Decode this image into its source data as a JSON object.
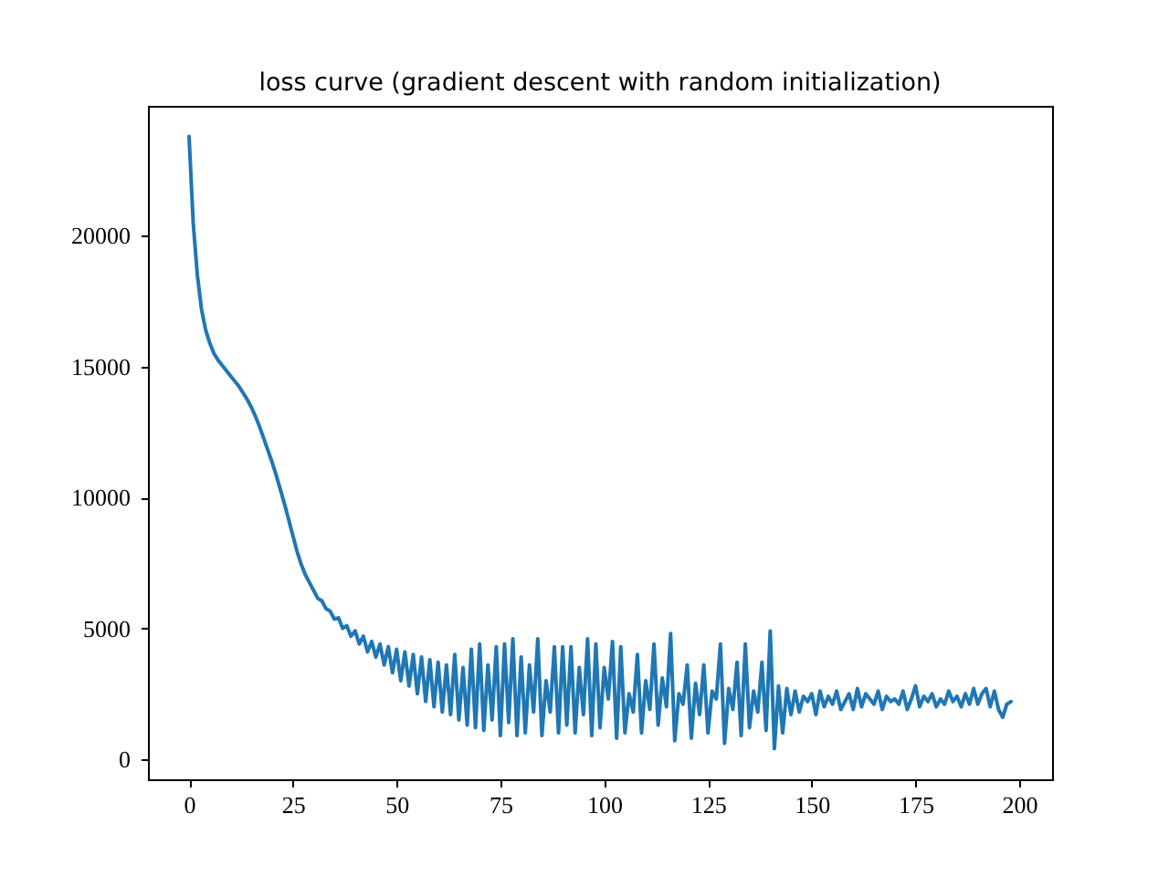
{
  "chart_data": {
    "type": "line",
    "title": "loss curve (gradient descent with random initialization)",
    "x": [
      0,
      1,
      2,
      3,
      4,
      5,
      6,
      7,
      8,
      9,
      10,
      11,
      12,
      13,
      14,
      15,
      16,
      17,
      18,
      19,
      20,
      21,
      22,
      23,
      24,
      25,
      26,
      27,
      28,
      29,
      30,
      31,
      32,
      33,
      34,
      35,
      36,
      37,
      38,
      39,
      40,
      41,
      42,
      43,
      44,
      45,
      46,
      47,
      48,
      49,
      50,
      51,
      52,
      53,
      54,
      55,
      56,
      57,
      58,
      59,
      60,
      61,
      62,
      63,
      64,
      65,
      66,
      67,
      68,
      69,
      70,
      71,
      72,
      73,
      74,
      75,
      76,
      77,
      78,
      79,
      80,
      81,
      82,
      83,
      84,
      85,
      86,
      87,
      88,
      89,
      90,
      91,
      92,
      93,
      94,
      95,
      96,
      97,
      98,
      99,
      100,
      101,
      102,
      103,
      104,
      105,
      106,
      107,
      108,
      109,
      110,
      111,
      112,
      113,
      114,
      115,
      116,
      117,
      118,
      119,
      120,
      121,
      122,
      123,
      124,
      125,
      126,
      127,
      128,
      129,
      130,
      131,
      132,
      133,
      134,
      135,
      136,
      137,
      138,
      139,
      140,
      141,
      142,
      143,
      144,
      145,
      146,
      147,
      148,
      149,
      150,
      151,
      152,
      153,
      154,
      155,
      156,
      157,
      158,
      159,
      160,
      161,
      162,
      163,
      164,
      165,
      166,
      167,
      168,
      169,
      170,
      171,
      172,
      173,
      174,
      175,
      176,
      177,
      178,
      179,
      180,
      181,
      182,
      183,
      184,
      185,
      186,
      187,
      188,
      189,
      190,
      191,
      192,
      193,
      194,
      195,
      196,
      197,
      198
    ],
    "series": [
      {
        "color": "#1f77b4",
        "values": [
          23800,
          20500,
          18500,
          17200,
          16400,
          15900,
          15500,
          15250,
          15050,
          14850,
          14650,
          14450,
          14250,
          14000,
          13750,
          13450,
          13100,
          12700,
          12250,
          11800,
          11350,
          10850,
          10300,
          9750,
          9150,
          8550,
          7950,
          7450,
          7050,
          6750,
          6450,
          6150,
          6050,
          5750,
          5650,
          5350,
          5400,
          5000,
          5100,
          4700,
          4900,
          4400,
          4700,
          4100,
          4500,
          3900,
          4400,
          3600,
          4300,
          3300,
          4200,
          3000,
          4100,
          2800,
          4000,
          2500,
          3900,
          2200,
          3800,
          2000,
          3700,
          1800,
          3600,
          1700,
          4000,
          1500,
          3500,
          1300,
          4200,
          1200,
          4400,
          1100,
          3600,
          1500,
          4300,
          900,
          4400,
          1400,
          4600,
          900,
          3900,
          1000,
          3600,
          1800,
          4600,
          900,
          3000,
          1800,
          4300,
          1000,
          4300,
          1300,
          4300,
          1000,
          3500,
          1700,
          4600,
          900,
          4400,
          1200,
          3500,
          2300,
          4500,
          800,
          4300,
          1000,
          2500,
          1800,
          4000,
          1000,
          3000,
          1900,
          4400,
          1300,
          3100,
          2000,
          4800,
          700,
          2500,
          2100,
          3600,
          800,
          2900,
          1700,
          3600,
          1000,
          2600,
          2300,
          4400,
          600,
          2700,
          1900,
          3700,
          900,
          4400,
          1200,
          2600,
          1800,
          3700,
          1100,
          4900,
          400,
          2800,
          1000,
          2700,
          1700,
          2600,
          1800,
          2400,
          2200,
          2500,
          1700,
          2600,
          2000,
          2400,
          2100,
          2600,
          1900,
          2200,
          2500,
          1900,
          2700,
          2000,
          2500,
          2300,
          2100,
          2600,
          1900,
          2400,
          2200,
          2300,
          2100,
          2600,
          1900,
          2300,
          2800,
          2000,
          2400,
          2200,
          2500,
          2000,
          2300,
          2100,
          2600,
          2200,
          2400,
          2000,
          2500,
          2100,
          2700,
          2100,
          2500,
          2700,
          2000,
          2600,
          1900,
          1600,
          2100,
          2200
        ]
      }
    ],
    "xlim": [
      -9.9,
      207.9
    ],
    "ylim": [
      -770,
      24970
    ],
    "xticks": [
      0,
      25,
      50,
      75,
      100,
      125,
      150,
      175,
      200
    ],
    "yticks": [
      0,
      5000,
      10000,
      15000,
      20000
    ],
    "grid": false
  }
}
